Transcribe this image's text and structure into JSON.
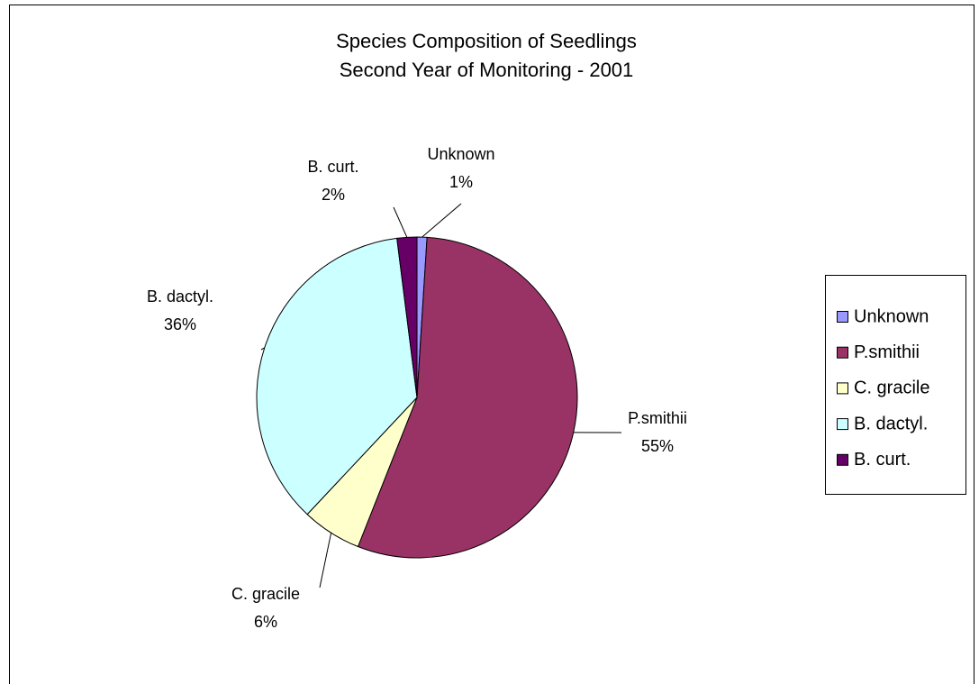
{
  "chart_data": {
    "type": "pie",
    "title": "Species Composition of Seedlings",
    "subtitle": "Second Year of Monitoring - 2001",
    "categories": [
      "Unknown",
      "P.smithii",
      "C. gracile",
      "B. dactyl.",
      "B. curt."
    ],
    "values": [
      1,
      55,
      6,
      36,
      2
    ],
    "value_labels": [
      "1%",
      "55%",
      "6%",
      "36%",
      "2%"
    ],
    "colors": [
      "#9999ff",
      "#993366",
      "#ffffcc",
      "#ccffff",
      "#660066"
    ],
    "legend": "right"
  }
}
